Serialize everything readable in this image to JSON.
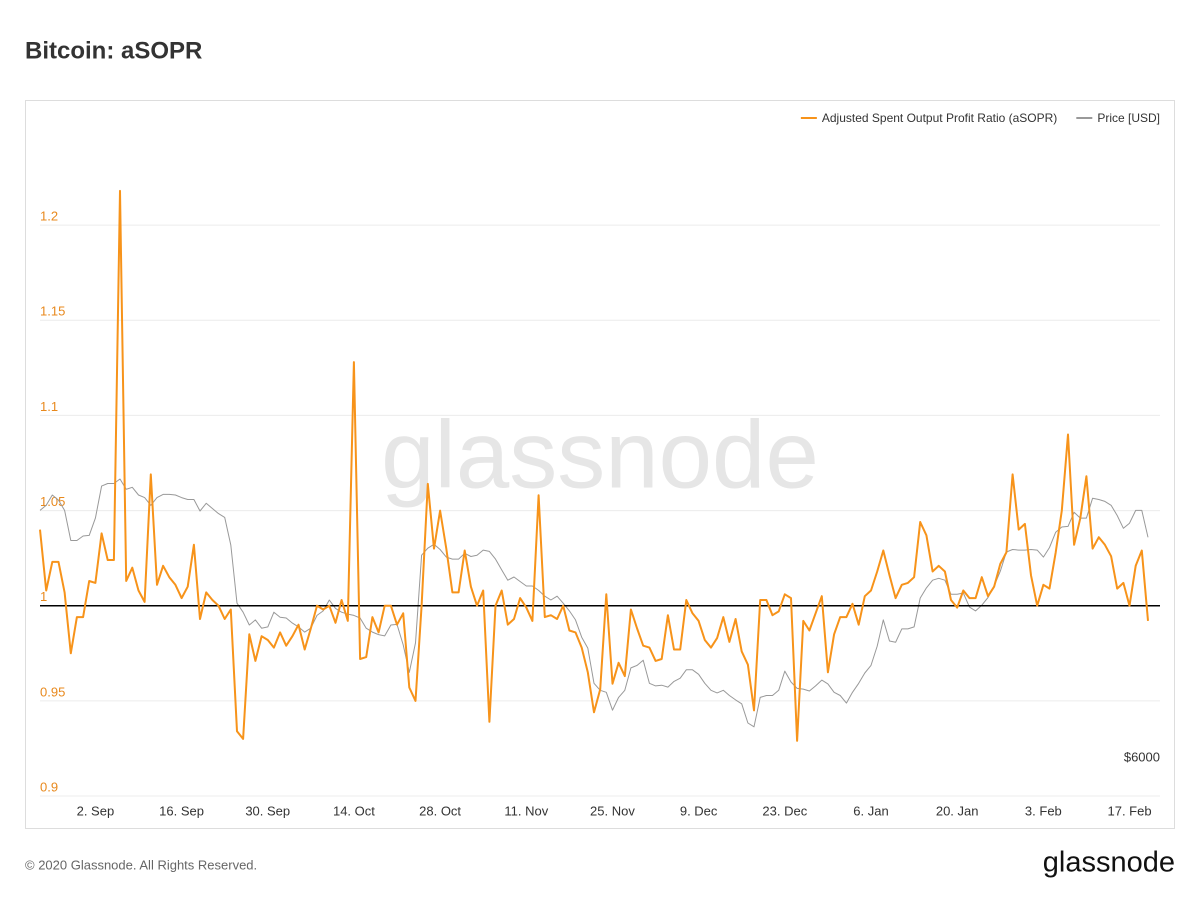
{
  "header": {
    "title": "Bitcoin: aSOPR"
  },
  "chart_data": {
    "type": "line",
    "watermark": "glassnode",
    "categories": [
      null,
      null,
      null,
      null,
      null,
      null,
      null,
      null,
      null,
      "2. Sep",
      null,
      null,
      null,
      null,
      null,
      null,
      null,
      null,
      null,
      null,
      null,
      null,
      null,
      "16. Sep",
      null,
      null,
      null,
      null,
      null,
      null,
      null,
      null,
      null,
      null,
      null,
      null,
      null,
      "30. Sep",
      null,
      null,
      null,
      null,
      null,
      null,
      null,
      null,
      null,
      null,
      null,
      null,
      null,
      "14. Oct",
      null,
      null,
      null,
      null,
      null,
      null,
      null,
      null,
      null,
      null,
      null,
      null,
      null,
      "28. Oct",
      null,
      null,
      null,
      null,
      null,
      null,
      null,
      null,
      null,
      null,
      null,
      null,
      null,
      "11. Nov",
      null,
      null,
      null,
      null,
      null,
      null,
      null,
      null,
      null,
      null,
      null,
      null,
      null,
      "25. Nov",
      null,
      null,
      null,
      null,
      null,
      null,
      null,
      null,
      null,
      null,
      null,
      null,
      null,
      "9. Dec",
      null,
      null,
      null,
      null,
      null,
      null,
      null,
      null,
      null,
      null,
      null,
      null,
      null,
      "23. Dec",
      null,
      null,
      null,
      null,
      null,
      null,
      null,
      null,
      null,
      null,
      null,
      null,
      null,
      "6. Jan",
      null,
      null,
      null,
      null,
      null,
      null,
      null,
      null,
      null,
      null,
      null,
      null,
      null,
      "20. Jan",
      null,
      null,
      null,
      null,
      null,
      null,
      null,
      null,
      null,
      null,
      null,
      null,
      null,
      "3. Feb",
      null,
      null,
      null,
      null,
      null,
      null,
      null,
      null,
      null,
      null,
      null,
      null,
      null,
      "17. Feb",
      null,
      null,
      null
    ],
    "series": [
      {
        "name": "Adjusted Spent Output Profit Ratio (aSOPR)",
        "color": "#f7931a",
        "axis": "y",
        "values": [
          1.04,
          1.008,
          1.023,
          1.023,
          1.007,
          0.975,
          0.994,
          0.994,
          1.013,
          1.012,
          1.038,
          1.024,
          1.024,
          1.218,
          1.013,
          1.02,
          1.008,
          1.002,
          1.069,
          1.011,
          1.021,
          1.015,
          1.011,
          1.004,
          1.01,
          1.032,
          0.993,
          1.007,
          1.003,
          1.0,
          0.993,
          0.998,
          0.934,
          0.93,
          0.985,
          0.971,
          0.984,
          0.982,
          0.978,
          0.986,
          0.979,
          0.984,
          0.99,
          0.977,
          0.988,
          1.0,
          0.998,
          1.0,
          0.991,
          1.003,
          0.992,
          1.128,
          0.972,
          0.973,
          0.994,
          0.986,
          1.0,
          1.0,
          0.99,
          0.996,
          0.957,
          0.95,
          1.0,
          1.064,
          1.03,
          1.05,
          1.03,
          1.007,
          1.007,
          1.029,
          1.01,
          1.0,
          1.008,
          0.939,
          1.0,
          1.008,
          0.99,
          0.993,
          1.004,
          0.999,
          0.992,
          1.058,
          0.994,
          0.995,
          0.993,
          1.0,
          0.987,
          0.986,
          0.978,
          0.965,
          0.944,
          0.956,
          1.006,
          0.959,
          0.97,
          0.963,
          0.998,
          0.988,
          0.979,
          0.978,
          0.971,
          0.972,
          0.995,
          0.977,
          0.977,
          1.003,
          0.996,
          0.992,
          0.982,
          0.978,
          0.983,
          0.994,
          0.981,
          0.993,
          0.976,
          0.969,
          0.945,
          1.003,
          1.003,
          0.995,
          0.997,
          1.006,
          1.004,
          0.929,
          0.992,
          0.987,
          0.996,
          1.005,
          0.965,
          0.985,
          0.994,
          0.994,
          1.001,
          0.99,
          1.005,
          1.008,
          1.018,
          1.029,
          1.016,
          1.004,
          1.011,
          1.012,
          1.015,
          1.044,
          1.037,
          1.018,
          1.021,
          1.018,
          1.003,
          0.999,
          1.008,
          1.004,
          1.004,
          1.015,
          1.005,
          1.01,
          1.022,
          1.028,
          1.069,
          1.04,
          1.043,
          1.016,
          1.0,
          1.011,
          1.009,
          1.028,
          1.05,
          1.09,
          1.032,
          1.046,
          1.068,
          1.03,
          1.036,
          1.032,
          1.026,
          1.009,
          1.012,
          1.0,
          1.021,
          1.029,
          0.992
        ]
      },
      {
        "name": "Price [USD]",
        "color": "#999999",
        "axis": "y2",
        "values": [
          9960,
          10040,
          10200,
          10120,
          9960,
          9490,
          9490,
          9560,
          9570,
          9840,
          10340,
          10380,
          10380,
          10450,
          10290,
          10320,
          10200,
          10160,
          10040,
          10160,
          10210,
          10210,
          10200,
          10160,
          10130,
          10130,
          9950,
          10070,
          9990,
          9910,
          9850,
          9420,
          8510,
          8370,
          8170,
          8250,
          8120,
          8140,
          8370,
          8290,
          8280,
          8200,
          8140,
          8060,
          8120,
          8320,
          8390,
          8560,
          8430,
          8370,
          8340,
          8320,
          8280,
          8120,
          8060,
          8020,
          8000,
          8170,
          8180,
          7860,
          7430,
          7890,
          9260,
          9370,
          9430,
          9350,
          9230,
          9200,
          9200,
          9290,
          9240,
          9260,
          9340,
          9320,
          9200,
          9030,
          8870,
          8920,
          8850,
          8780,
          8780,
          8710,
          8620,
          8560,
          8620,
          8510,
          8390,
          8250,
          7980,
          7810,
          7260,
          7150,
          7120,
          6840,
          7040,
          7150,
          7500,
          7540,
          7620,
          7260,
          7220,
          7230,
          7200,
          7290,
          7340,
          7470,
          7470,
          7400,
          7260,
          7150,
          7110,
          7150,
          7070,
          7000,
          6940,
          6640,
          6580,
          7040,
          7070,
          7070,
          7150,
          7450,
          7280,
          7180,
          7170,
          7140,
          7220,
          7310,
          7250,
          7120,
          7070,
          6950,
          7120,
          7260,
          7420,
          7540,
          7840,
          8250,
          7920,
          7900,
          8110,
          8110,
          8140,
          8590,
          8750,
          8870,
          8900,
          8870,
          8650,
          8650,
          8670,
          8450,
          8390,
          8480,
          8600,
          8780,
          9010,
          9310,
          9350,
          9340,
          9340,
          9350,
          9340,
          9230,
          9380,
          9620,
          9700,
          9710,
          9930,
          9840,
          9840,
          10150,
          10130,
          10100,
          10040,
          9880,
          9680,
          9760,
          9960,
          9960,
          9540
        ]
      }
    ],
    "ylim": [
      0.9,
      1.25
    ],
    "yticks": [
      0.9,
      0.95,
      1,
      1.05,
      1.1,
      1.15,
      1.2
    ],
    "y2lim": [
      5500,
      15900
    ],
    "y2ticks": [
      {
        "value": 6000,
        "label": "$6000"
      }
    ],
    "hline": 1,
    "grid": true,
    "legend": "top-right",
    "tick_color": "#e8891d"
  },
  "footer": {
    "copyright": "© 2020 Glassnode. All Rights Reserved.",
    "logo": "glassnode"
  }
}
